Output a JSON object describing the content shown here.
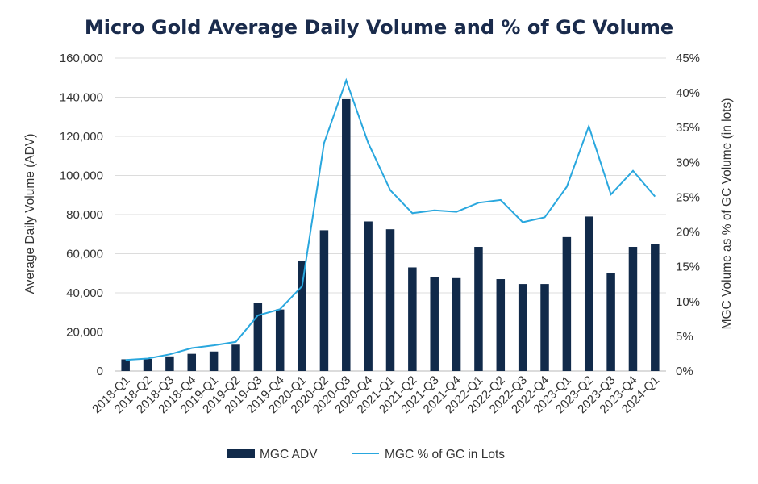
{
  "chart_data": {
    "type": "bar",
    "title": "Micro Gold Average Daily Volume and % of GC Volume",
    "ylabel": "Average Daily Volume (ADV)",
    "y2label": "MGC Volume as % of GC Volume (in lots)",
    "ylim": [
      0,
      160000
    ],
    "y2lim": [
      0,
      45
    ],
    "yticks": [
      "0",
      "20,000",
      "40,000",
      "60,000",
      "80,000",
      "100,000",
      "120,000",
      "140,000",
      "160,000"
    ],
    "y2ticks": [
      "0%",
      "5%",
      "10%",
      "15%",
      "20%",
      "25%",
      "30%",
      "35%",
      "40%",
      "45%"
    ],
    "grid": true,
    "legend_position": "bottom",
    "categories": [
      "2018-Q1",
      "2018-Q2",
      "2018-Q3",
      "2018-Q4",
      "2019-Q1",
      "2019-Q2",
      "2019-Q3",
      "2019-Q4",
      "2020-Q1",
      "2020-Q2",
      "2020-Q3",
      "2020-Q4",
      "2021-Q1",
      "2021-Q2",
      "2021-Q3",
      "2021-Q4",
      "2022-Q1",
      "2022-Q2",
      "2022-Q3",
      "2022-Q4",
      "2023-Q1",
      "2023-Q2",
      "2023-Q3",
      "2023-Q4",
      "2024-Q1"
    ],
    "series": [
      {
        "name": "MGC ADV",
        "type": "bar",
        "axis": "left",
        "color": "#112a4a",
        "values": [
          6000,
          6200,
          7500,
          8800,
          10000,
          13500,
          35000,
          31500,
          56500,
          72000,
          139000,
          76500,
          72500,
          53000,
          48000,
          47500,
          63500,
          47000,
          44500,
          44500,
          68500,
          79000,
          50000,
          63500,
          65000
        ]
      },
      {
        "name": "MGC % of GC in Lots",
        "type": "line",
        "axis": "right",
        "color": "#29a7de",
        "values": [
          1.6,
          1.8,
          2.4,
          3.3,
          3.7,
          4.2,
          8.0,
          8.9,
          12.2,
          32.8,
          41.8,
          32.8,
          26.0,
          22.7,
          23.1,
          22.9,
          24.2,
          24.6,
          21.4,
          22.1,
          26.5,
          35.2,
          25.4,
          28.8,
          25.1
        ]
      }
    ]
  }
}
